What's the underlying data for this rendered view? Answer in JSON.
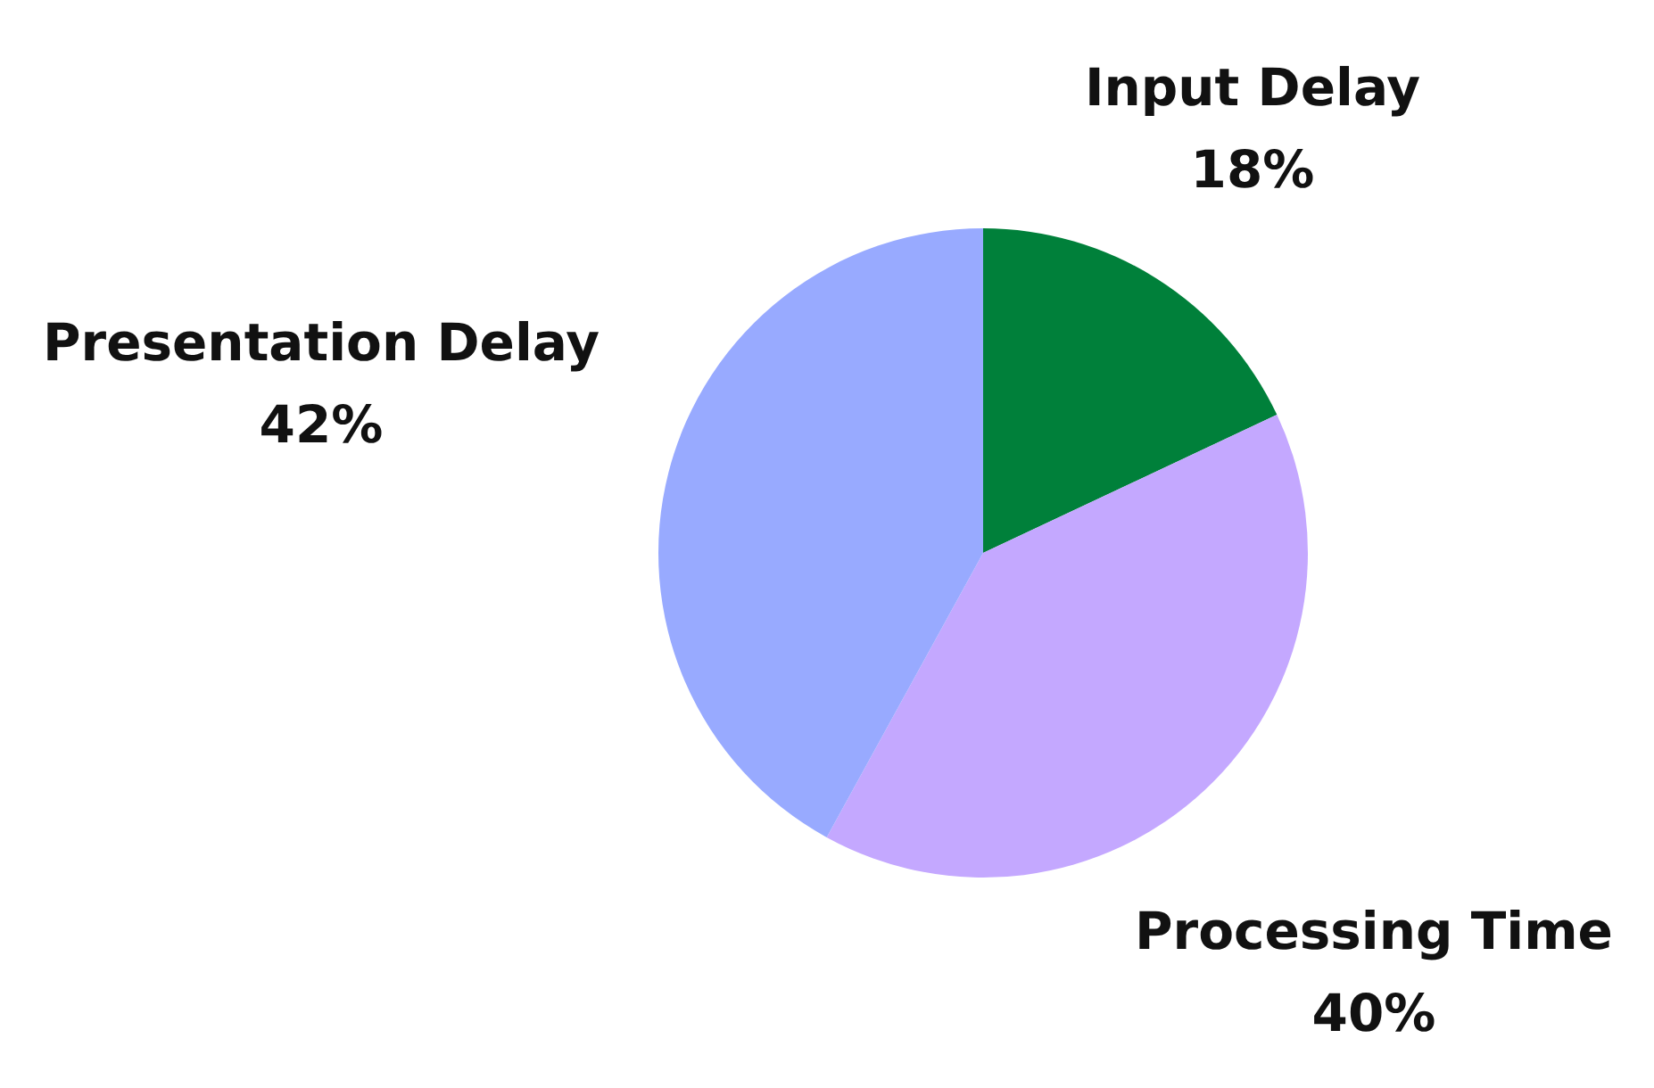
{
  "chart_data": {
    "type": "pie",
    "categories": [
      "Input Delay",
      "Processing Time",
      "Presentation Delay"
    ],
    "values": [
      18,
      40,
      42
    ],
    "colors": [
      "#00803a",
      "#c4a8ff",
      "#98aaff"
    ],
    "value_labels": [
      "18%",
      "40%",
      "42%"
    ],
    "legend": false
  }
}
